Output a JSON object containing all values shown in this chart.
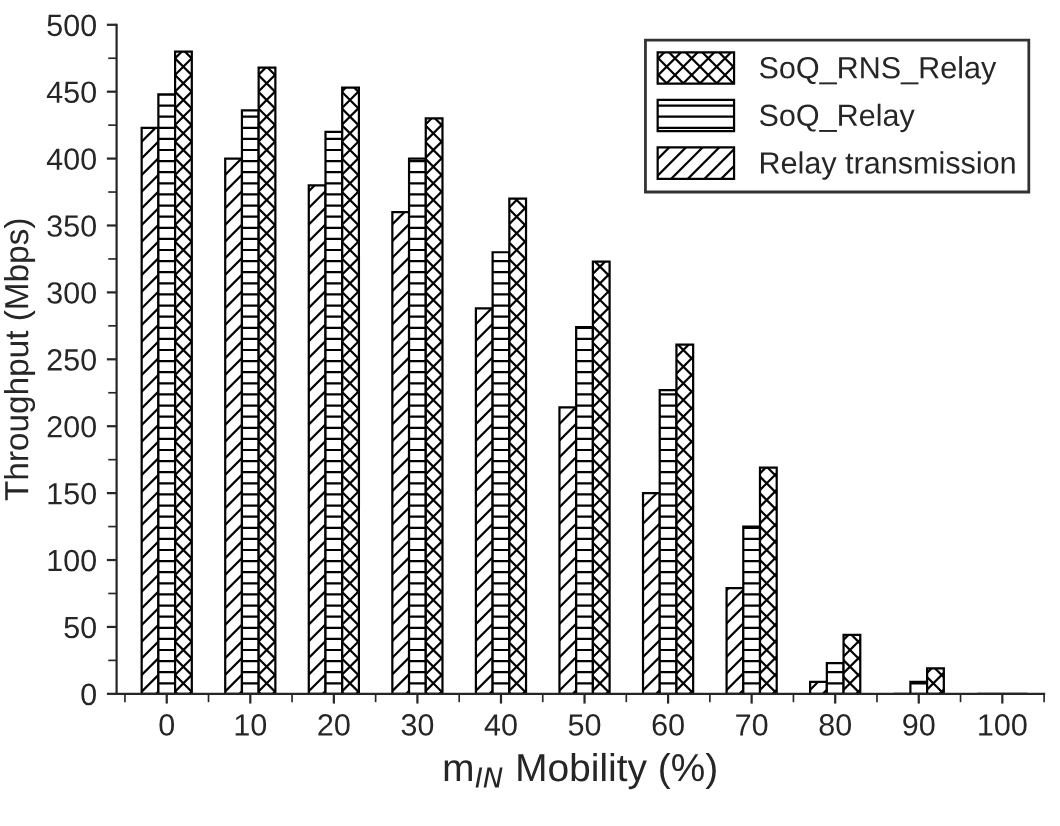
{
  "chart_data": {
    "type": "bar",
    "xlabel": "m$_{IN}$ Mobility (%)",
    "ylabel": "Throughput (Mbps)",
    "categories": [
      "0",
      "10",
      "20",
      "30",
      "40",
      "50",
      "60",
      "70",
      "80",
      "90",
      "100"
    ],
    "series": [
      {
        "name": "Relay transmission",
        "color": "#000000",
        "values": [
          423,
          400,
          380,
          360,
          288,
          214,
          150,
          79,
          9,
          0,
          0
        ]
      },
      {
        "name": "SoQ_Relay",
        "color": "#000000",
        "values": [
          448,
          436,
          420,
          400,
          330,
          274,
          227,
          125,
          23,
          9,
          0
        ]
      },
      {
        "name": "SoQ_RNS_Relay",
        "color": "#000000",
        "values": [
          480,
          468,
          453,
          430,
          370,
          323,
          261,
          169,
          44,
          19,
          0
        ]
      }
    ],
    "ylim": [
      0,
      500
    ],
    "yticks": [
      0,
      50,
      100,
      150,
      200,
      250,
      300,
      350,
      400,
      450,
      500
    ],
    "legend": "top right",
    "grid": false
  }
}
